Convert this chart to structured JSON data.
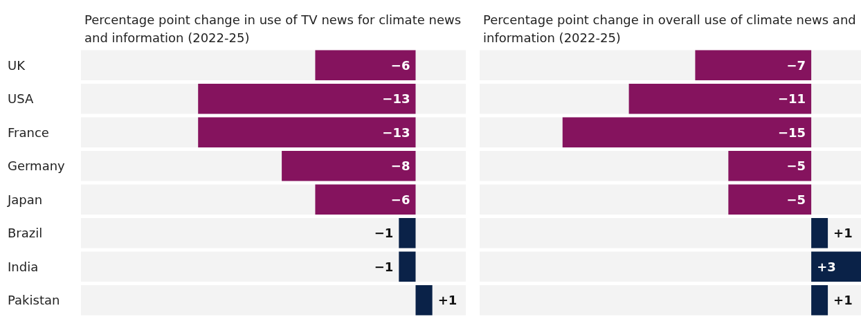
{
  "chart_data": [
    {
      "type": "bar",
      "orientation": "horizontal",
      "title": "Percentage point change in use of TV news for climate news and information (2022-25)",
      "categories": [
        "UK",
        "USA",
        "France",
        "Germany",
        "Japan",
        "Brazil",
        "India",
        "Pakistan"
      ],
      "values": [
        -6,
        -13,
        -13,
        -8,
        -6,
        -1,
        -1,
        1
      ],
      "colors": [
        "#85135e",
        "#85135e",
        "#85135e",
        "#85135e",
        "#85135e",
        "#0a2248",
        "#0a2248",
        "#0a2248"
      ],
      "value_labels": [
        "−6",
        "−13",
        "−13",
        "−8",
        "−6",
        "−1",
        "−1",
        "+1"
      ],
      "xlim": [
        -20,
        3
      ],
      "tick_labels": "y"
    },
    {
      "type": "bar",
      "orientation": "horizontal",
      "title": "Percentage point change in overall use of climate news and information (2022-25)",
      "categories": [
        null,
        null,
        null,
        null,
        null,
        null,
        null,
        null
      ],
      "values": [
        -7,
        -11,
        -15,
        -5,
        -5,
        1,
        3,
        1
      ],
      "colors": [
        "#85135e",
        "#85135e",
        "#85135e",
        "#85135e",
        "#85135e",
        "#0a2248",
        "#0a2248",
        "#0a2248"
      ],
      "value_labels": [
        "−7",
        "−11",
        "−15",
        "−5",
        "−5",
        "+1",
        "+3",
        "+1"
      ],
      "xlim": [
        -20,
        3
      ],
      "tick_labels": false
    }
  ]
}
